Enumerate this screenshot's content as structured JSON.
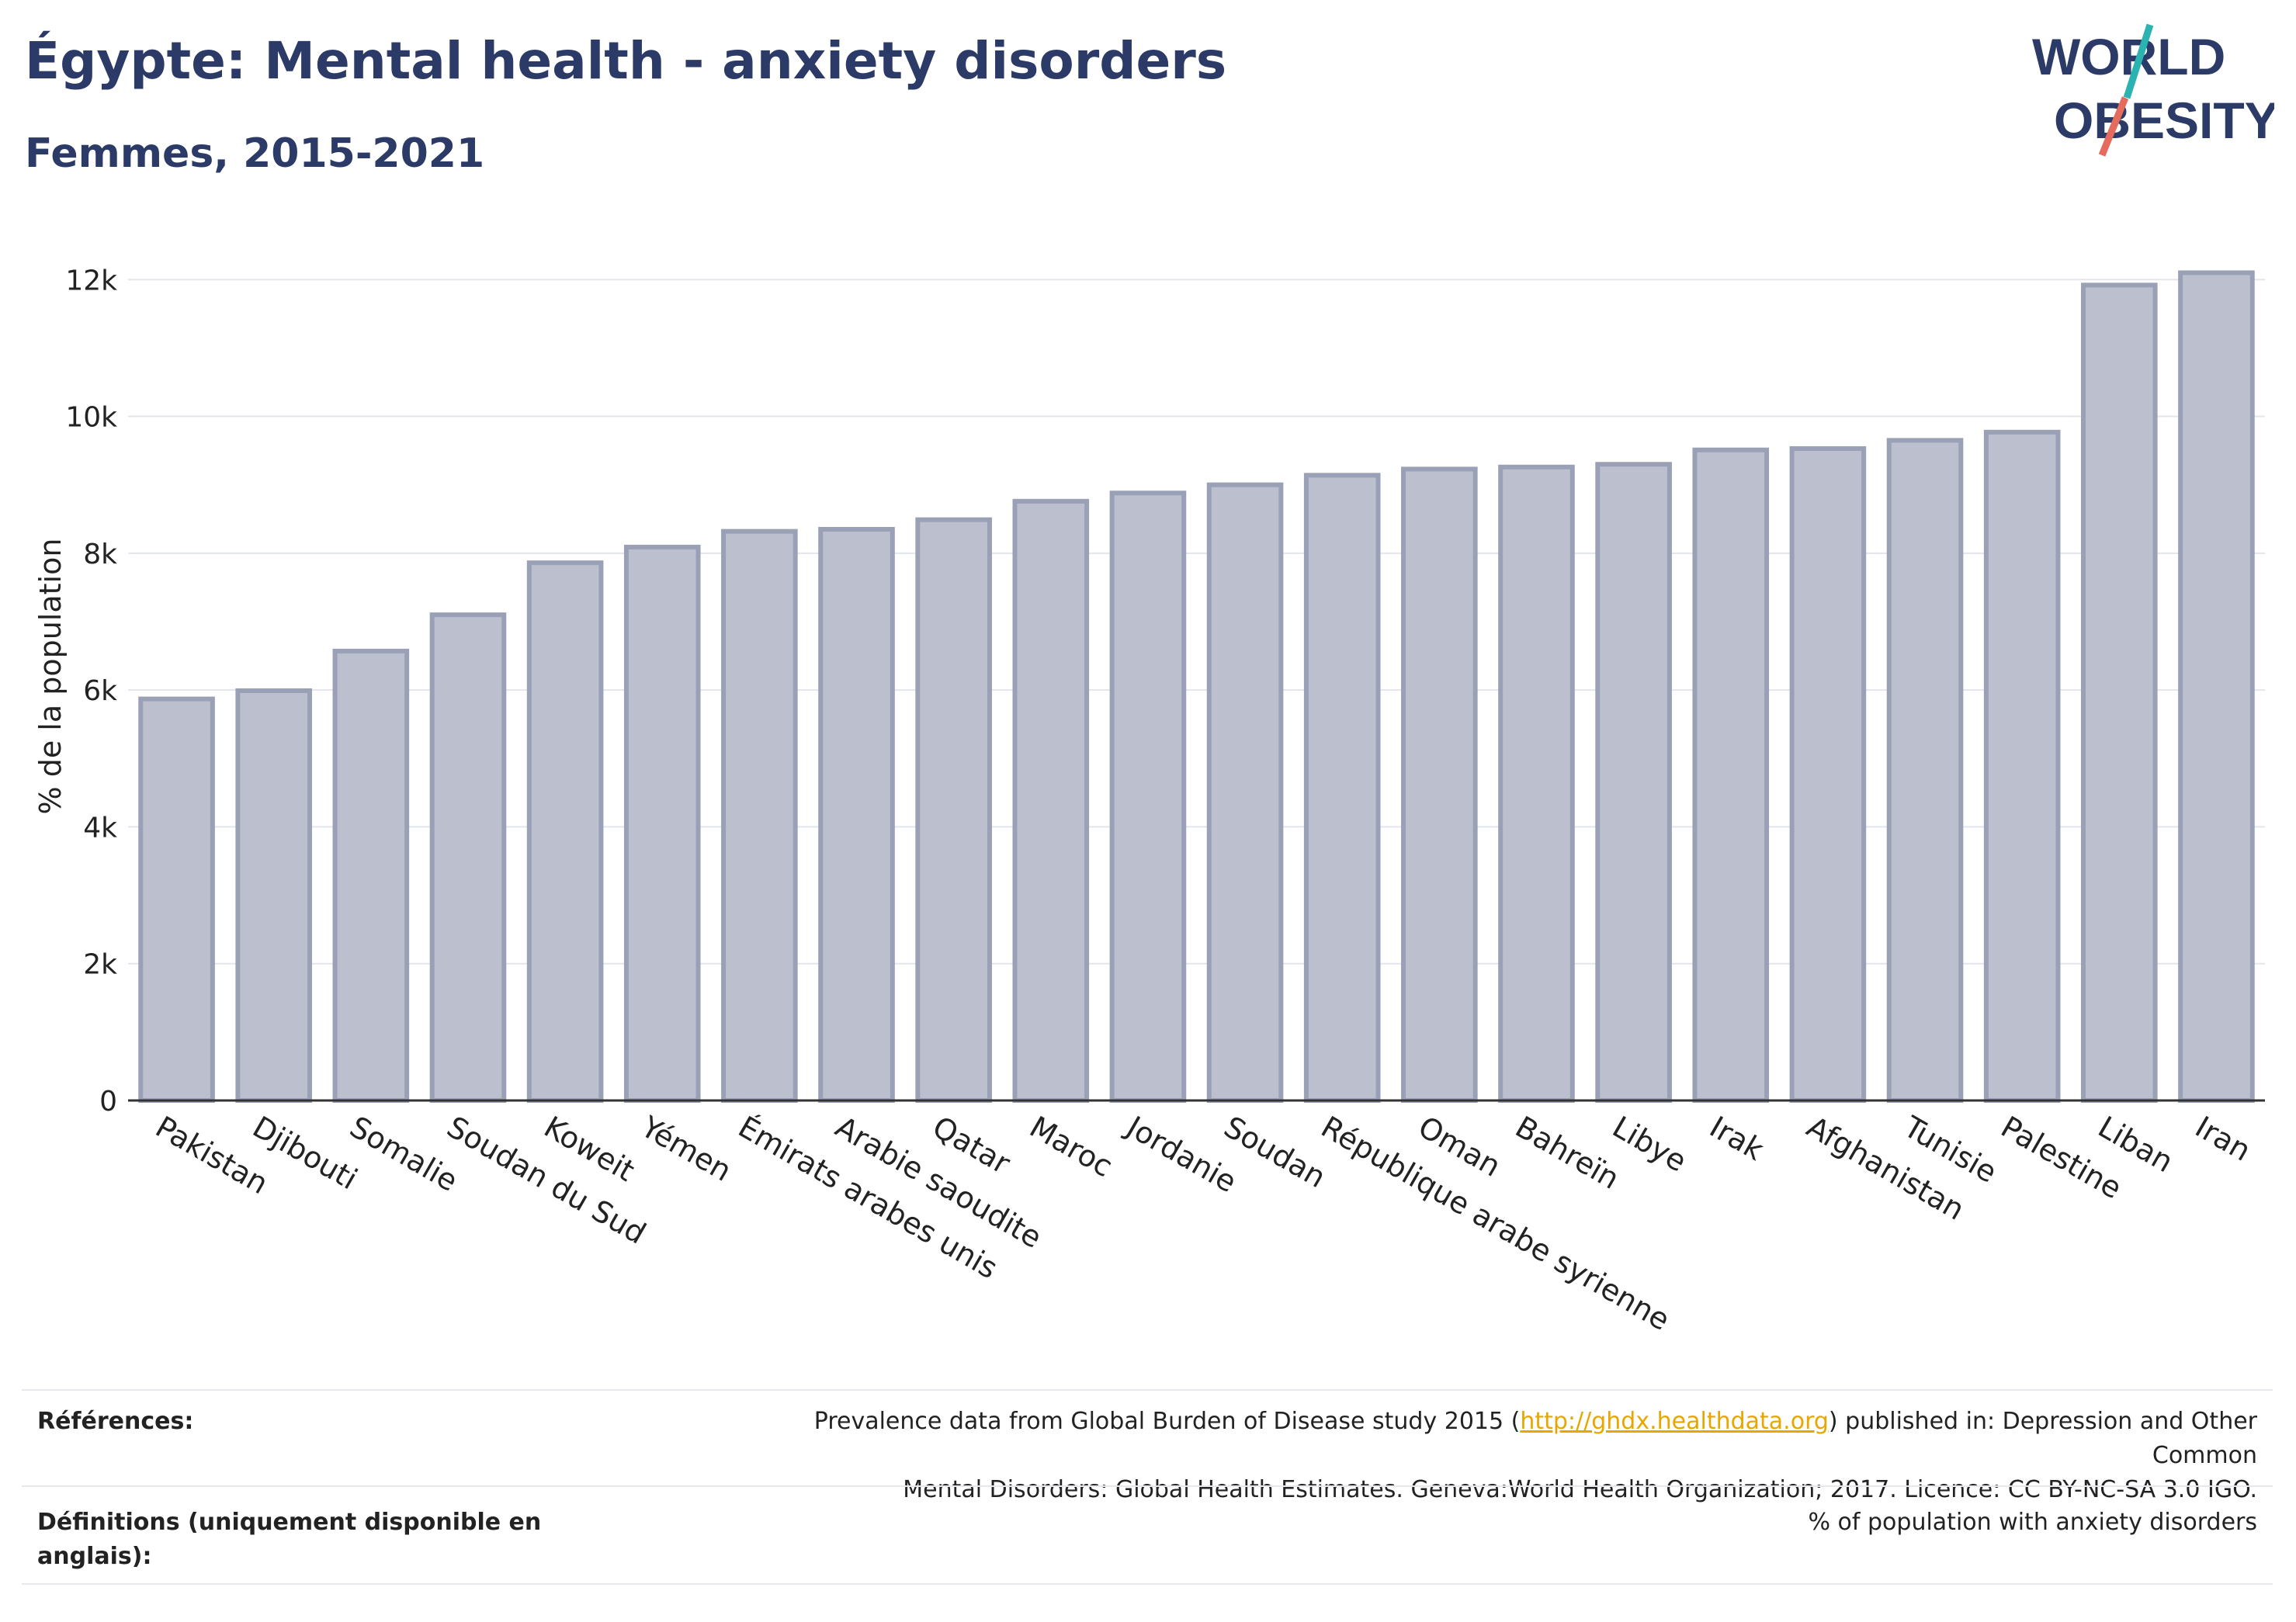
{
  "header": {
    "title": "Égypte: Mental health - anxiety disorders",
    "subtitle": "Femmes, 2015-2021"
  },
  "logo": {
    "line1": "WORLD",
    "line2": "OBESITY"
  },
  "chart_data": {
    "type": "bar",
    "categories": [
      "Pakistan",
      "Djibouti",
      "Somalie",
      "Soudan du Sud",
      "Koweit",
      "Yémen",
      "Émirats arabes unis",
      "Arabie saoudite",
      "Qatar",
      "Maroc",
      "Jordanie",
      "Soudan",
      "République arabe syrienne",
      "Oman",
      "Bahreïn",
      "Libye",
      "Irak",
      "Afghanistan",
      "Tunisie",
      "Palestine",
      "Liban",
      "Iran"
    ],
    "values": [
      5870,
      5990,
      6570,
      7100,
      7860,
      8090,
      8320,
      8350,
      8490,
      8760,
      8880,
      9000,
      9140,
      9230,
      9260,
      9300,
      9510,
      9530,
      9650,
      9770,
      11920,
      12100
    ],
    "ylabel": "% de la population",
    "xlabel": "",
    "ylim": [
      0,
      12400
    ],
    "yticks": [
      0,
      2000,
      4000,
      6000,
      8000,
      10000,
      12000
    ],
    "ytick_labels": [
      "0",
      "2k",
      "4k",
      "6k",
      "8k",
      "10k",
      "12k"
    ],
    "grid": true,
    "bar_color": "#bcc0ce",
    "bar_edge_color": "#9aa0b6"
  },
  "footer": {
    "references_label": "Références:",
    "references_text_before": "Prevalence data from Global Burden of Disease study 2015 (",
    "references_link": "http://ghdx.healthdata.org",
    "references_text_after": ") published in: Depression and Other Common",
    "references_line2": "Mental Disorders: Global Health Estimates. Geneva:World Health Organization; 2017. Licence: CC BY-NC-SA 3.0 IGO.",
    "definitions_label": "Définitions (uniquement disponible en anglais):",
    "definitions_text": "% of population with anxiety disorders"
  },
  "colors": {
    "title": "#2b3a67",
    "accent_teal": "#2ab3b1",
    "accent_coral": "#e56b5d",
    "link": "#e8a700"
  }
}
